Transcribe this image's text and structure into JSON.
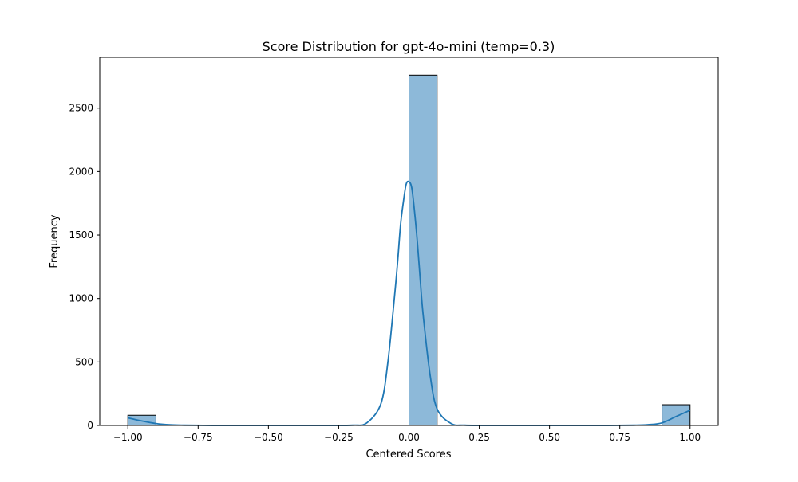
{
  "chart_data": {
    "type": "bar",
    "title": "Score Distribution for gpt-4o-mini (temp=0.3)",
    "xlabel": "Centered Scores",
    "ylabel": "Frequency",
    "xlim": [
      -1.1,
      1.1
    ],
    "ylim": [
      0,
      2900
    ],
    "x_ticks": [
      -1.0,
      -0.75,
      -0.5,
      -0.25,
      0.0,
      0.25,
      0.5,
      0.75,
      1.0
    ],
    "x_tick_labels": [
      "−1.00",
      "−0.75",
      "−0.50",
      "−0.25",
      "0.00",
      "0.25",
      "0.50",
      "0.75",
      "1.00"
    ],
    "y_ticks": [
      0,
      500,
      1000,
      1500,
      2000,
      2500
    ],
    "y_tick_labels": [
      "0",
      "500",
      "1000",
      "1500",
      "2000",
      "2500"
    ],
    "grid": false,
    "legend": false,
    "bins": [
      {
        "x0": -1.0,
        "x1": -0.9,
        "count": 80
      },
      {
        "x0": 0.0,
        "x1": 0.1,
        "count": 2760
      },
      {
        "x0": 0.9,
        "x1": 1.0,
        "count": 163
      }
    ],
    "kde": {
      "x": [
        -1.0,
        -0.95,
        -0.9,
        -0.85,
        -0.8,
        -0.7,
        -0.5,
        -0.3,
        -0.2,
        -0.15,
        -0.1,
        -0.075,
        -0.05,
        -0.04,
        -0.03,
        -0.02,
        -0.01,
        0.0,
        0.01,
        0.02,
        0.03,
        0.04,
        0.05,
        0.075,
        0.1,
        0.15,
        0.2,
        0.3,
        0.5,
        0.7,
        0.8,
        0.85,
        0.9,
        0.95,
        1.0
      ],
      "y": [
        60,
        35,
        15,
        5,
        2,
        0,
        0,
        0,
        2,
        20,
        170,
        500,
        1050,
        1300,
        1580,
        1760,
        1900,
        1920,
        1870,
        1680,
        1440,
        1150,
        880,
        400,
        130,
        15,
        2,
        0,
        0,
        0,
        2,
        6,
        20,
        70,
        120
      ]
    },
    "colors": {
      "bar_fill": "#8db9d9",
      "bar_edge": "#000000",
      "kde_line": "#1f77b4",
      "axes": "#000000"
    }
  }
}
